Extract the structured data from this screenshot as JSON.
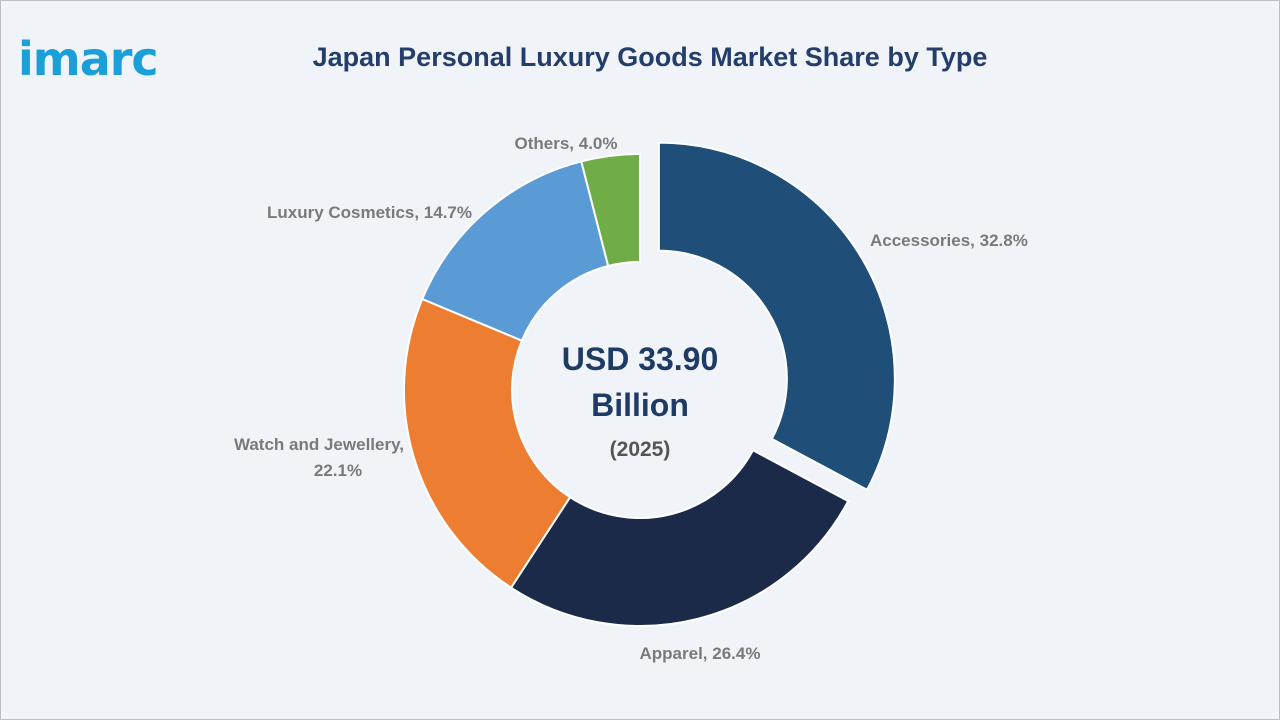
{
  "logo": {
    "text": "imarc"
  },
  "chart_data": {
    "type": "pie",
    "variant": "donut",
    "title": "Japan Personal Luxury Goods Market Share by Type",
    "center_text": {
      "line1": "USD 33.90",
      "line2": "Billion",
      "line3": "(2025)"
    },
    "categories": [
      "Accessories",
      "Apparel",
      "Watch and Jewellery",
      "Luxury Cosmetics",
      "Others"
    ],
    "values": [
      32.8,
      26.4,
      22.1,
      14.7,
      4.0
    ],
    "unit": "%",
    "labels": [
      "Accessories, 32.8%",
      "Apparel, 26.4%",
      "Watch and Jewellery,",
      "Luxury Cosmetics, 14.7%",
      "Others, 4.0%"
    ],
    "label_second_lines": [
      "",
      "",
      "22.1%",
      "",
      ""
    ],
    "exploded": [
      "Accessories"
    ],
    "colors": [
      "#1f4e78",
      "#1c2a4a",
      "#ed7d31",
      "#5b9bd5",
      "#70ad47"
    ],
    "start_angle_deg": 0,
    "direction": "clockwise"
  }
}
